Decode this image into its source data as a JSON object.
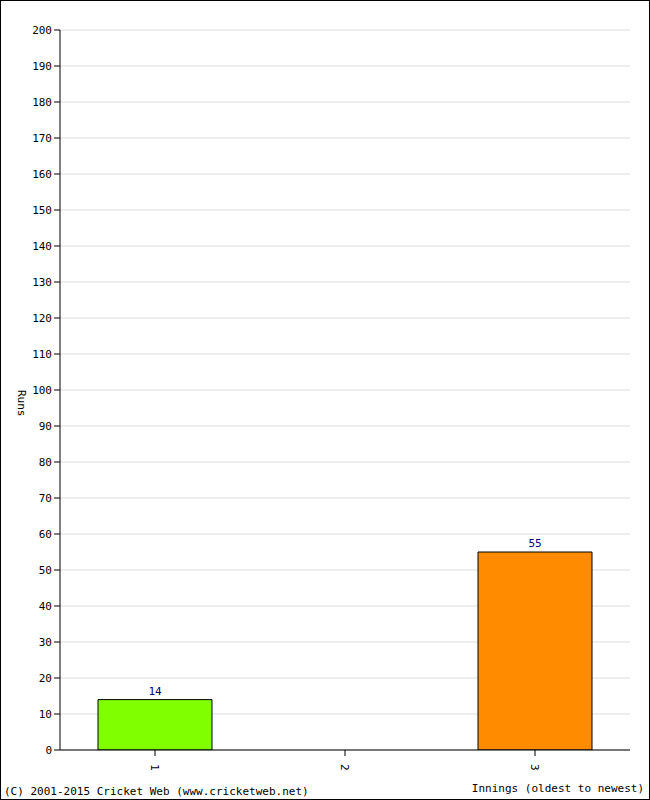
{
  "chart_data": {
    "type": "bar",
    "categories": [
      "1",
      "2",
      "3"
    ],
    "values": [
      14,
      0,
      55
    ],
    "colors": [
      "#80ff00",
      "#ff8c00",
      "#ff8c00"
    ],
    "x_label": "Innings (oldest to newest)",
    "y_label": "Runs",
    "ylim": [
      0,
      200
    ],
    "yticks": [
      0,
      10,
      20,
      30,
      40,
      50,
      60,
      70,
      80,
      90,
      100,
      110,
      120,
      130,
      140,
      150,
      160,
      170,
      180,
      190,
      200
    ],
    "grid": true,
    "data_labels": true,
    "annotations": [
      "(C) 2001-2015 Cricket Web (www.cricketweb.net)"
    ]
  }
}
